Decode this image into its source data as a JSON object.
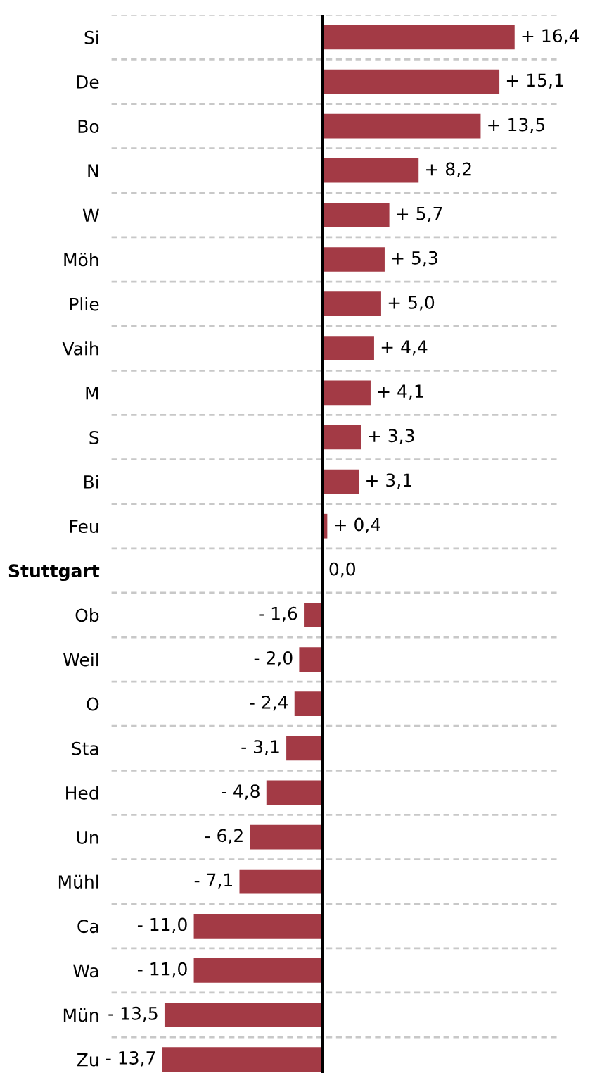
{
  "chart_data": {
    "type": "bar",
    "orientation": "horizontal",
    "categories": [
      "Si",
      "De",
      "Bo",
      "N",
      "W",
      "Möh",
      "Plie",
      "Vaih",
      "M",
      "S",
      "Bi",
      "Feu",
      "Stuttgart",
      "Ob",
      "Weil",
      "O",
      "Sta",
      "Hed",
      "Un",
      "Mühl",
      "Ca",
      "Wa",
      "Mün",
      "Zu"
    ],
    "values": [
      16.4,
      15.1,
      13.5,
      8.2,
      5.7,
      5.3,
      5.0,
      4.4,
      4.1,
      3.3,
      3.1,
      0.4,
      0.0,
      -1.6,
      -2.0,
      -2.4,
      -3.1,
      -4.8,
      -6.2,
      -7.1,
      -11.0,
      -11.0,
      -13.5,
      -13.7
    ],
    "value_labels": [
      "+ 16,4",
      "+ 15,1",
      "+ 13,5",
      "+ 8,2",
      "+ 5,7",
      "+ 5,3",
      "+ 5,0",
      "+ 4,4",
      "+ 4,1",
      "+ 3,3",
      "+ 3,1",
      "+ 0,4",
      "0,0",
      "- 1,6",
      "- 2,0",
      "- 2,4",
      "- 3,1",
      "- 4,8",
      "- 6,2",
      "- 7,1",
      "- 11,0",
      "- 11,0",
      "- 13,5",
      "- 13,7"
    ],
    "color": "#a33a45",
    "grid": "y"
  }
}
